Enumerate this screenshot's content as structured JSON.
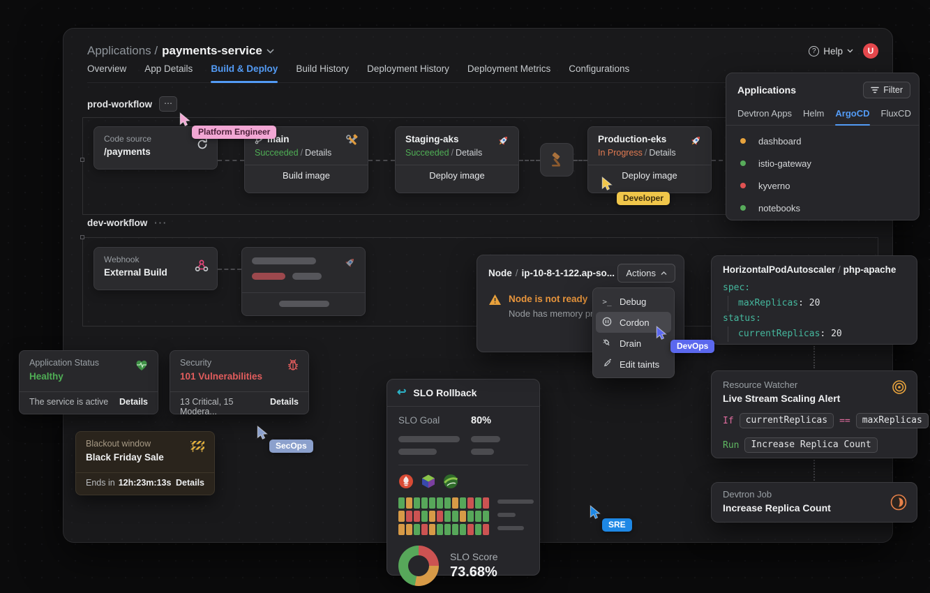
{
  "header": {
    "breadcrumb": "Applications",
    "separator": "/",
    "app_name": "payments-service",
    "help_label": "Help",
    "avatar_initial": "U",
    "tabs": [
      {
        "label": "Overview"
      },
      {
        "label": "App Details"
      },
      {
        "label": "Build & Deploy"
      },
      {
        "label": "Build History"
      },
      {
        "label": "Deployment History"
      },
      {
        "label": "Deployment Metrics"
      },
      {
        "label": "Configurations"
      }
    ],
    "active_tab": "Build & Deploy"
  },
  "prod_workflow": {
    "title": "prod-workflow",
    "menu": "⋯",
    "code_source": {
      "label": "Code source",
      "value": "/payments"
    },
    "build": {
      "name": "main",
      "status": "Succeeded",
      "separator": "/",
      "details": "Details",
      "action": "Build image"
    },
    "staging": {
      "name": "Staging-aks",
      "status": "Succeeded",
      "separator": "/",
      "details": "Details",
      "action": "Deploy image"
    },
    "production": {
      "name": "Production-eks",
      "status": "In Progress",
      "separator": "/",
      "details": "Details",
      "action": "Deploy image"
    }
  },
  "dev_workflow": {
    "title": "dev-workflow",
    "menu": "···",
    "webhook": {
      "label": "Webhook",
      "value": "External Build"
    }
  },
  "applications_panel": {
    "title": "Applications",
    "filter_label": "Filter",
    "tabs": [
      {
        "label": "Devtron Apps"
      },
      {
        "label": "Helm"
      },
      {
        "label": "ArgoCD"
      },
      {
        "label": "FluxCD"
      }
    ],
    "active_tab": "ArgoCD",
    "items": [
      {
        "name": "dashboard",
        "status_color": "#e8a33d"
      },
      {
        "name": "istio-gateway",
        "status_color": "#57ab5a"
      },
      {
        "name": "kyverno",
        "status_color": "#e05252"
      },
      {
        "name": "notebooks",
        "status_color": "#57ab5a"
      }
    ]
  },
  "node_panel": {
    "kind": "Node",
    "separator": "/",
    "name": "ip-10-8-1-122.ap-so...",
    "actions_label": "Actions",
    "warning_title": "Node is not ready",
    "warning_subtitle": "Node has memory pre...",
    "menu": [
      {
        "label": "Debug"
      },
      {
        "label": "Cordon",
        "active": true
      },
      {
        "label": "Drain"
      },
      {
        "label": "Edit taints"
      }
    ]
  },
  "hpa_panel": {
    "title_kind": "HorizontalPodAutoscaler",
    "separator": "/",
    "title_name": "php-apache",
    "yaml": {
      "spec_key": "spec:",
      "max_replicas_key": "maxReplicas",
      "max_replicas_value": "20",
      "status_key": "status:",
      "current_replicas_key": "currentReplicas",
      "current_replicas_value": "20"
    }
  },
  "status_cards": {
    "application_status": {
      "label": "Application Status",
      "value": "Healthy",
      "footer": "The service is active",
      "details": "Details"
    },
    "security": {
      "label": "Security",
      "value": "101 Vulnerabilities",
      "footer": "13 Critical, 15 Modera...",
      "details": "Details"
    },
    "blackout": {
      "label": "Blackout window",
      "value": "Black Friday Sale",
      "footer_prefix": "Ends in",
      "countdown": "12h:23m:13s",
      "details": "Details"
    }
  },
  "slo_panel": {
    "title": "SLO Rollback",
    "goal_label": "SLO Goal",
    "goal_value": "80%",
    "score_label": "SLO Score",
    "score_value": "73.68%",
    "grid_rows": [
      "GOGGGGGOGRGR",
      "ORRGORGGOGGG",
      "OOGROGGGGRGR"
    ],
    "cell_colors": {
      "G": "#57a75a",
      "O": "#d79a47",
      "R": "#cc5352"
    },
    "donut_segments": [
      {
        "color": "#cc5352",
        "pct": 25
      },
      {
        "color": "#d79a47",
        "pct": 28
      },
      {
        "color": "#57a75a",
        "pct": 47
      }
    ]
  },
  "resource_watcher": {
    "label": "Resource Watcher",
    "title": "Live Stream Scaling Alert",
    "if_keyword": "If",
    "left_operand": "currentReplicas",
    "operator": "==",
    "right_operand": "maxReplicas",
    "run_keyword": "Run",
    "action": "Increase Replica Count"
  },
  "devtron_job": {
    "label": "Devtron Job",
    "title": "Increase Replica Count"
  },
  "cursors": {
    "platform_engineer": {
      "label": "Platform Engineer",
      "color": "#f2a7d4"
    },
    "developer": {
      "label": "Developer",
      "color": "#f0c64a"
    },
    "secops": {
      "label": "SecOps",
      "color": "#8ba0cc"
    },
    "devops": {
      "label": "DevOps",
      "color": "#5b68ee"
    },
    "sre": {
      "label": "SRE",
      "color": "#1e88e5"
    }
  }
}
